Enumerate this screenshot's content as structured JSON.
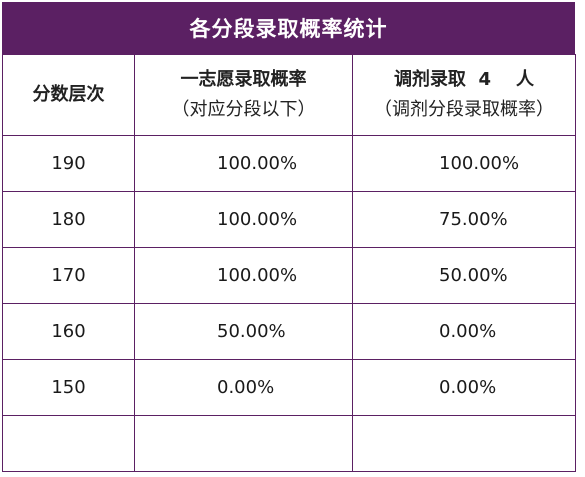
{
  "title": "各分段录取概率统计",
  "headers": {
    "col1": "分数层次",
    "col2_line1": "一志愿录取概率",
    "col2_line2": "（对应分段以下）",
    "col3_line1": "调剂录取  4    人",
    "col3_line2": "（调剂分段录取概率）"
  },
  "rows": [
    {
      "score": "190",
      "first_choice": "100.00%",
      "adjusted": "100.00%"
    },
    {
      "score": "180",
      "first_choice": "100.00%",
      "adjusted": "75.00%"
    },
    {
      "score": "170",
      "first_choice": "100.00%",
      "adjusted": "50.00%"
    },
    {
      "score": "160",
      "first_choice": "50.00%",
      "adjusted": "0.00%"
    },
    {
      "score": "150",
      "first_choice": "0.00%",
      "adjusted": "0.00%"
    },
    {
      "score": "",
      "first_choice": "",
      "adjusted": ""
    }
  ],
  "colors": {
    "header_bg": "#5b2063",
    "border": "#5b2063"
  }
}
